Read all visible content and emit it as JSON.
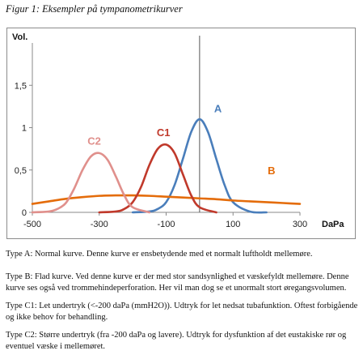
{
  "caption": "Figur 1: Eksempler på tympanometrikurver",
  "descriptions": {
    "type_a": "Type A: Normal kurve. Denne kurve er ensbetydende med et normalt luftholdt mellemøre.",
    "type_b": "Type B: Flad kurve. Ved denne kurve er der med stor sandsynlighed et væskefyldt mellemøre. Denne kurve ses også ved trommehindeperforation. Her vil man dog se et unormalt stort øregangsvolumen.",
    "type_c1": "Type C1: Let undertryk (<-200 daPa (mmH2O)). Udtryk for let nedsat tubafunktion. Oftest forbigående og ikke behov for behandling.",
    "type_c2": "Type C2: Større undertryk (fra -200 daPa og lavere). Udtryk for dysfunktion af det eustakiske rør og eventuel væske i mellemøret."
  },
  "chart_data": {
    "type": "line",
    "ylabel": "Vol.",
    "xlabel": "DaPa",
    "xlim": [
      -500,
      300
    ],
    "ylim": [
      0,
      2
    ],
    "x_ticks": [
      -500,
      -300,
      -100,
      100,
      300
    ],
    "x_tick_labels": [
      "-500",
      "-300",
      "-100",
      "100",
      "300"
    ],
    "y_ticks": [
      0,
      0.5,
      1,
      1.5
    ],
    "y_tick_labels": [
      "0",
      "0,5",
      "1",
      "1,5"
    ],
    "reference_line_x": 0,
    "grid": false,
    "legend": "none",
    "series": [
      {
        "name": "A",
        "color": "#4a7ebb",
        "x": [
          -200,
          -150,
          -125,
          -100,
          -75,
          -50,
          -25,
          0,
          25,
          50,
          75,
          100,
          150,
          200
        ],
        "y": [
          0,
          0.01,
          0.04,
          0.12,
          0.32,
          0.63,
          0.95,
          1.1,
          0.95,
          0.63,
          0.32,
          0.12,
          0.01,
          0
        ]
      },
      {
        "name": "B",
        "color": "#e46c0a",
        "x": [
          -500,
          -450,
          -400,
          -350,
          -300,
          -250,
          -200,
          -150,
          -100,
          -50,
          0,
          50,
          100,
          150,
          200,
          250,
          300
        ],
        "y": [
          0.1,
          0.13,
          0.16,
          0.18,
          0.195,
          0.2,
          0.2,
          0.195,
          0.185,
          0.175,
          0.165,
          0.155,
          0.14,
          0.13,
          0.12,
          0.11,
          0.1
        ]
      },
      {
        "name": "C1",
        "color": "#c0392b",
        "x": [
          -300,
          -250,
          -225,
          -200,
          -175,
          -150,
          -125,
          -100,
          -75,
          -50,
          -25,
          0,
          50
        ],
        "y": [
          0,
          0.01,
          0.04,
          0.12,
          0.3,
          0.56,
          0.75,
          0.8,
          0.7,
          0.45,
          0.2,
          0.06,
          0
        ]
      },
      {
        "name": "C2",
        "color": "#e0908c",
        "x": [
          -500,
          -450,
          -425,
          -400,
          -375,
          -350,
          -325,
          -300,
          -275,
          -250,
          -225,
          -200,
          -150
        ],
        "y": [
          0,
          0.01,
          0.04,
          0.11,
          0.28,
          0.5,
          0.66,
          0.7,
          0.62,
          0.42,
          0.2,
          0.06,
          0
        ]
      }
    ],
    "annotations": [
      {
        "text": "A",
        "x": 55,
        "y": 1.18,
        "color": "#4a7ebb"
      },
      {
        "text": "B",
        "x": 215,
        "y": 0.45,
        "color": "#e46c0a"
      },
      {
        "text": "C1",
        "x": -108,
        "y": 0.9,
        "color": "#c0392b"
      },
      {
        "text": "C2",
        "x": -315,
        "y": 0.8,
        "color": "#e0908c"
      }
    ]
  }
}
